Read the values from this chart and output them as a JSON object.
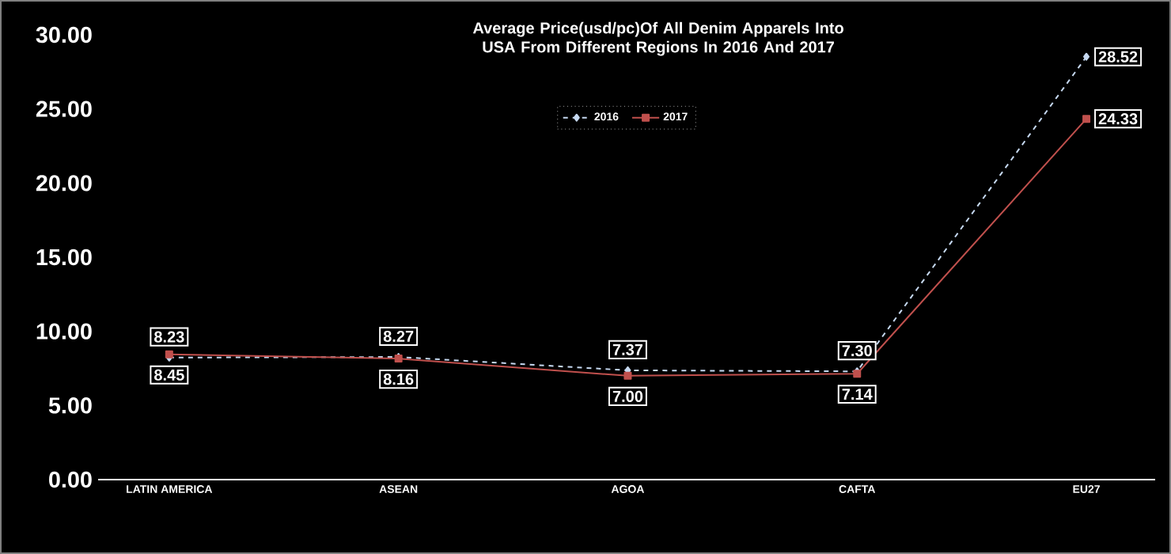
{
  "chart_data": {
    "type": "line",
    "title": "Average Price(usd/pc)Of All Denim Apparels Into USA From Different Regions In 2016 And 2017",
    "categories": [
      "LATIN AMERICA",
      "ASEAN",
      "AGOA",
      "CAFTA",
      "EU27"
    ],
    "series": [
      {
        "name": "2016",
        "color": "#c6d9f1",
        "values": [
          8.23,
          8.27,
          7.37,
          7.3,
          28.52
        ],
        "value_labels": [
          "8.23",
          "8.27",
          "7.37",
          "7.30",
          "28.52"
        ],
        "marker": "diamond",
        "line_style": "dashed"
      },
      {
        "name": "2017",
        "color": "#c0504d",
        "values": [
          8.45,
          8.16,
          7.0,
          7.14,
          24.33
        ],
        "value_labels": [
          "8.45",
          "8.16",
          "7.00",
          "7.14",
          "24.33"
        ],
        "marker": "square",
        "line_style": "solid"
      }
    ],
    "ylim": [
      0,
      30
    ],
    "yticks": [
      {
        "value": 0,
        "label": "0.00"
      },
      {
        "value": 5,
        "label": "5.00"
      },
      {
        "value": 10,
        "label": "10.00"
      },
      {
        "value": 15,
        "label": "15.00"
      },
      {
        "value": 20,
        "label": "20.00"
      },
      {
        "value": 25,
        "label": "25.00"
      },
      {
        "value": 30,
        "label": "30.00"
      }
    ],
    "grid": false,
    "legend": "top"
  }
}
